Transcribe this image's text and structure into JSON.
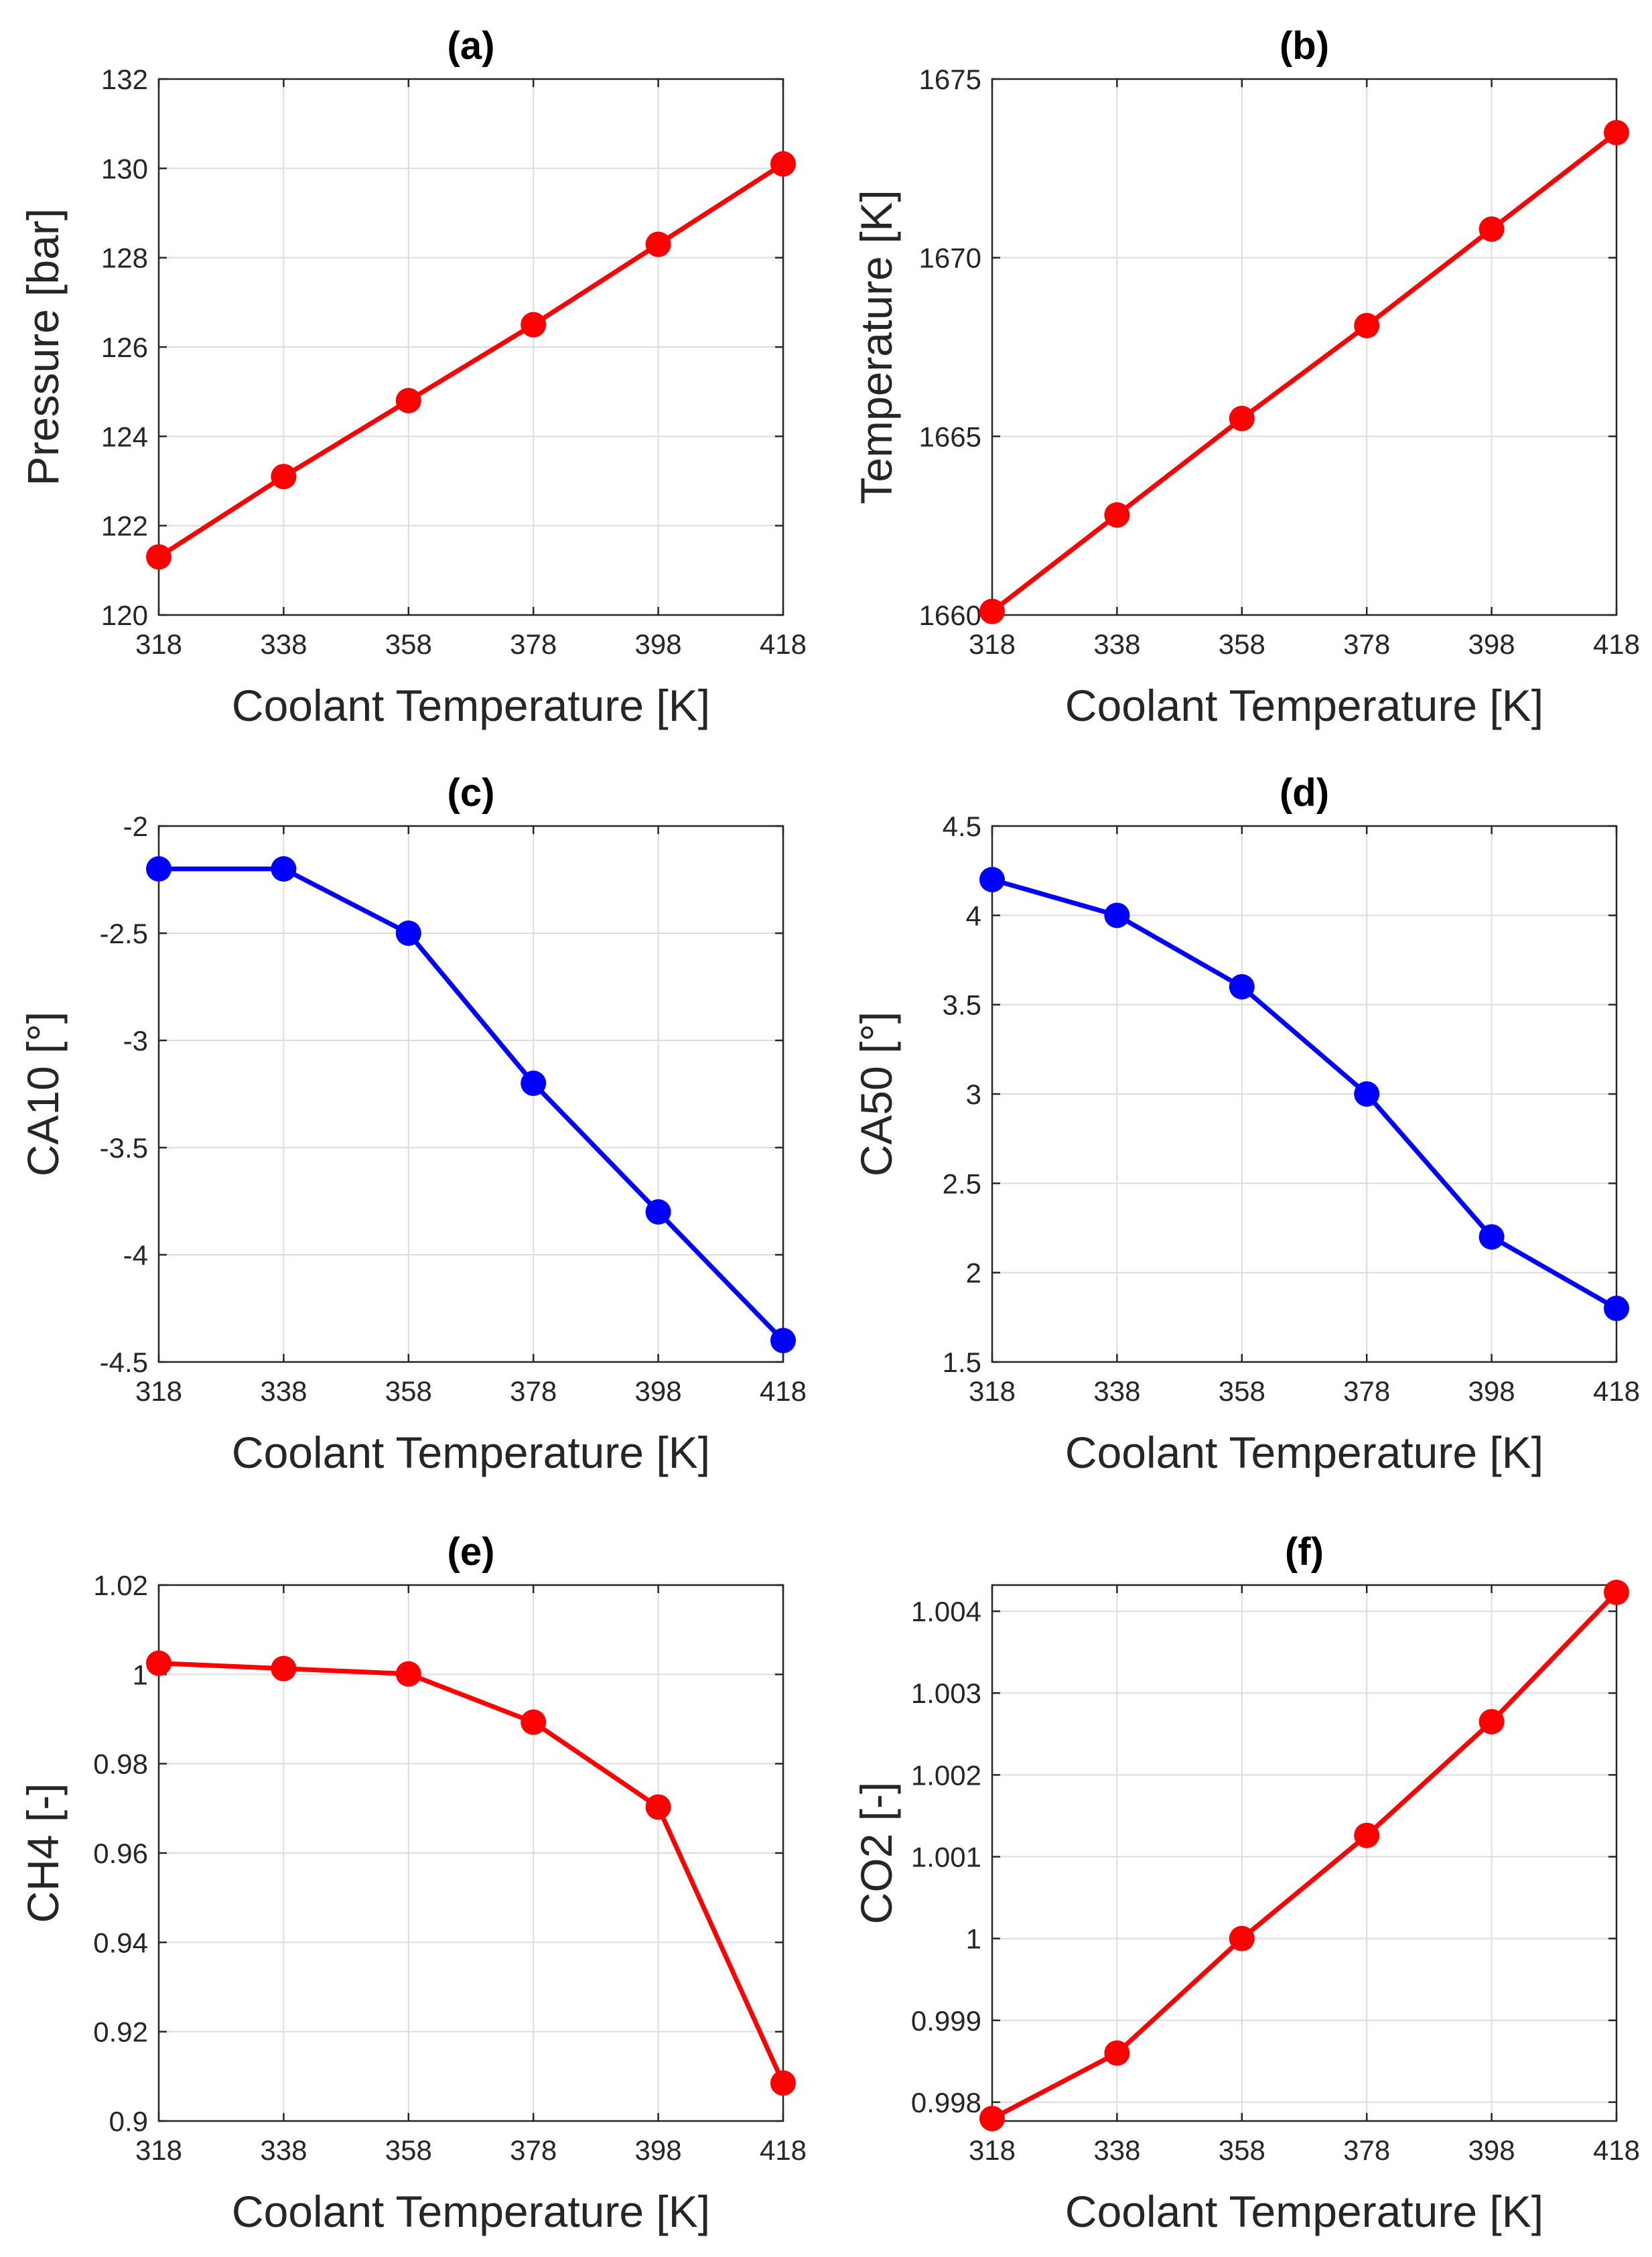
{
  "chart_data": [
    {
      "type": "line",
      "title": "(a)",
      "xlabel": "Coolant Temperature [K]",
      "ylabel": "Pressure [bar]",
      "x": [
        318,
        338,
        358,
        378,
        398,
        418
      ],
      "xticks": [
        "318",
        "338",
        "358",
        "378",
        "398",
        "418"
      ],
      "xlim": [
        318,
        418
      ],
      "y": [
        121.3,
        123.1,
        124.8,
        126.5,
        128.3,
        130.1
      ],
      "yticks": [
        "120",
        "122",
        "124",
        "126",
        "128",
        "130",
        "132"
      ],
      "ylim": [
        120,
        132
      ],
      "color": "#ff0000",
      "grid": true
    },
    {
      "type": "line",
      "title": "(b)",
      "xlabel": "Coolant Temperature [K]",
      "ylabel": "Temperature [K]",
      "x": [
        318,
        338,
        358,
        378,
        398,
        418
      ],
      "xticks": [
        "318",
        "338",
        "358",
        "378",
        "398",
        "418"
      ],
      "xlim": [
        318,
        418
      ],
      "y": [
        1660.1,
        1662.8,
        1665.5,
        1668.1,
        1670.8,
        1673.5
      ],
      "yticks": [
        "1660",
        "1665",
        "1670",
        "1675"
      ],
      "ylim": [
        1660,
        1675
      ],
      "color": "#ff0000",
      "grid": true
    },
    {
      "type": "line",
      "title": "(c)",
      "xlabel": "Coolant Temperature [K]",
      "ylabel": "CA10 [°]",
      "x": [
        318,
        338,
        358,
        378,
        398,
        418
      ],
      "xticks": [
        "318",
        "338",
        "358",
        "378",
        "398",
        "418"
      ],
      "xlim": [
        318,
        418
      ],
      "y": [
        -2.2,
        -2.2,
        -2.5,
        -3.2,
        -3.8,
        -4.4
      ],
      "yticks": [
        "-4.5",
        "-4",
        "-3.5",
        "-3",
        "-2.5",
        "-2"
      ],
      "ylim": [
        -4.5,
        -2
      ],
      "color": "#0000ff",
      "grid": true
    },
    {
      "type": "line",
      "title": "(d)",
      "xlabel": "Coolant Temperature [K]",
      "ylabel": "CA50 [°]",
      "x": [
        318,
        338,
        358,
        378,
        398,
        418
      ],
      "xticks": [
        "318",
        "338",
        "358",
        "378",
        "398",
        "418"
      ],
      "xlim": [
        318,
        418
      ],
      "y": [
        4.2,
        4.0,
        3.6,
        3.0,
        2.2,
        1.8
      ],
      "yticks": [
        "1.5",
        "2",
        "2.5",
        "3",
        "3.5",
        "4",
        "4.5"
      ],
      "ylim": [
        1.5,
        4.5
      ],
      "color": "#0000ff",
      "grid": true
    },
    {
      "type": "line",
      "title": "(e)",
      "xlabel": "Coolant Temperature [K]",
      "ylabel": "CH4 [-]",
      "x": [
        318,
        338,
        358,
        378,
        398,
        418
      ],
      "xticks": [
        "318",
        "338",
        "358",
        "378",
        "398",
        "418"
      ],
      "xlim": [
        318,
        418
      ],
      "y": [
        1.0025,
        1.0013,
        1.0001,
        0.9893,
        0.9703,
        0.9085
      ],
      "yticks": [
        "0.9",
        "0.92",
        "0.94",
        "0.96",
        "0.98",
        "1",
        "1.02"
      ],
      "ylim": [
        0.9,
        1.02
      ],
      "color": "#ff0000",
      "grid": true
    },
    {
      "type": "line",
      "title": "(f)",
      "xlabel": "Coolant Temperature [K]",
      "ylabel": "CO2 [-]",
      "x": [
        318,
        338,
        358,
        378,
        398,
        418
      ],
      "xticks": [
        "318",
        "338",
        "358",
        "378",
        "398",
        "418"
      ],
      "xlim": [
        318,
        418
      ],
      "y": [
        0.9978,
        0.9986,
        1.0,
        1.00126,
        1.00265,
        1.00423
      ],
      "yticks": [
        "0.998",
        "0.999",
        "1",
        "1.001",
        "1.002",
        "1.003",
        "1.004"
      ],
      "ytick_values": [
        0.998,
        0.999,
        1.0,
        1.001,
        1.002,
        1.003,
        1.004
      ],
      "ylim": [
        0.99777,
        1.00432
      ],
      "color": "#ff0000",
      "grid": true
    }
  ]
}
